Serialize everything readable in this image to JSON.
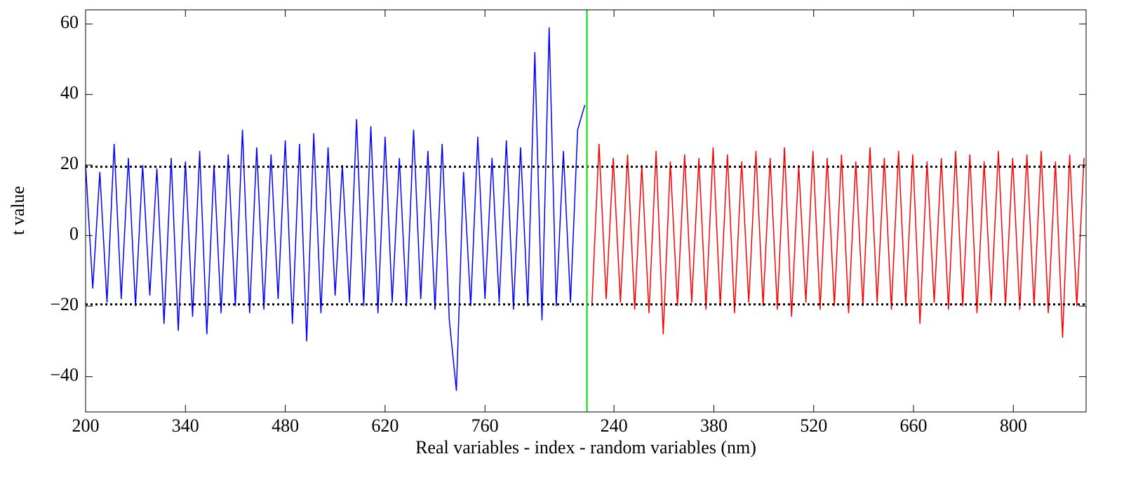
{
  "chart_data": {
    "type": "line",
    "xlabel": "Real variables - index - random variables (nm)",
    "ylabel": "t value",
    "xlim": [
      0,
      1403
    ],
    "ylim": [
      -50,
      64
    ],
    "xticks": [
      {
        "value": 0,
        "label": "200"
      },
      {
        "value": 140,
        "label": "340"
      },
      {
        "value": 280,
        "label": "480"
      },
      {
        "value": 420,
        "label": "620"
      },
      {
        "value": 560,
        "label": "760"
      },
      {
        "value": 741,
        "label": "240"
      },
      {
        "value": 881,
        "label": "380"
      },
      {
        "value": 1021,
        "label": "520"
      },
      {
        "value": 1161,
        "label": "660"
      },
      {
        "value": 1301,
        "label": "800"
      }
    ],
    "yticks": [
      {
        "value": -40,
        "label": "−40"
      },
      {
        "value": -20,
        "label": "−20"
      },
      0,
      20,
      40,
      60
    ],
    "thresholds": [
      19.5,
      -19.5
    ],
    "threshold_color": "#000000",
    "divider": 703,
    "divider_color": "#00dd00",
    "series": [
      {
        "name": "Real variables",
        "color": "#0000ff",
        "x": [
          0,
          10,
          20,
          30,
          40,
          50,
          60,
          70,
          80,
          90,
          100,
          110,
          120,
          130,
          140,
          150,
          160,
          170,
          180,
          190,
          200,
          210,
          220,
          230,
          240,
          250,
          260,
          270,
          280,
          290,
          300,
          310,
          320,
          330,
          340,
          350,
          360,
          370,
          380,
          390,
          400,
          410,
          420,
          430,
          440,
          450,
          460,
          470,
          480,
          490,
          500,
          510,
          520,
          530,
          540,
          550,
          560,
          570,
          580,
          590,
          600,
          610,
          620,
          630,
          640,
          650,
          660,
          670,
          680,
          690,
          700
        ],
        "values": [
          20,
          -15,
          18,
          -19,
          26,
          -18,
          22,
          -20,
          20,
          -17,
          19,
          -25,
          22,
          -27,
          21,
          -23,
          24,
          -28,
          20,
          -22,
          23,
          -20,
          30,
          -22,
          25,
          -21,
          23,
          -18,
          27,
          -25,
          26,
          -30,
          29,
          -22,
          25,
          -17,
          20,
          -19,
          33,
          -20,
          31,
          -22,
          28,
          -19,
          22,
          -20,
          30,
          -18,
          24,
          -21,
          26,
          -24,
          -44,
          18,
          -20,
          28,
          -18,
          22,
          -19,
          27,
          -21,
          25,
          -20,
          52,
          -24,
          59,
          -20,
          24,
          -19,
          30,
          37
        ]
      },
      {
        "name": "Random variables",
        "color": "#ff0000",
        "x": [
          710,
          720,
          730,
          740,
          750,
          760,
          770,
          780,
          790,
          800,
          810,
          820,
          830,
          840,
          850,
          860,
          870,
          880,
          890,
          900,
          910,
          920,
          930,
          940,
          950,
          960,
          970,
          980,
          990,
          1000,
          1010,
          1020,
          1030,
          1040,
          1050,
          1060,
          1070,
          1080,
          1090,
          1100,
          1110,
          1120,
          1130,
          1140,
          1150,
          1160,
          1170,
          1180,
          1190,
          1200,
          1210,
          1220,
          1230,
          1240,
          1250,
          1260,
          1270,
          1280,
          1290,
          1300,
          1310,
          1320,
          1330,
          1340,
          1350,
          1360,
          1370,
          1380,
          1390,
          1400
        ],
        "values": [
          -20,
          26,
          -18,
          22,
          -19,
          23,
          -21,
          20,
          -22,
          24,
          -28,
          21,
          -20,
          23,
          -19,
          22,
          -21,
          25,
          -20,
          23,
          -22,
          21,
          -19,
          24,
          -20,
          22,
          -21,
          25,
          -23,
          20,
          -19,
          24,
          -21,
          22,
          -20,
          23,
          -22,
          21,
          -20,
          25,
          -19,
          22,
          -21,
          24,
          -20,
          23,
          -25,
          21,
          -19,
          22,
          -21,
          24,
          -20,
          23,
          -22,
          21,
          -19,
          24,
          -20,
          22,
          -21,
          23,
          -20,
          24,
          -22,
          21,
          -29,
          23,
          -20,
          22
        ]
      }
    ]
  }
}
